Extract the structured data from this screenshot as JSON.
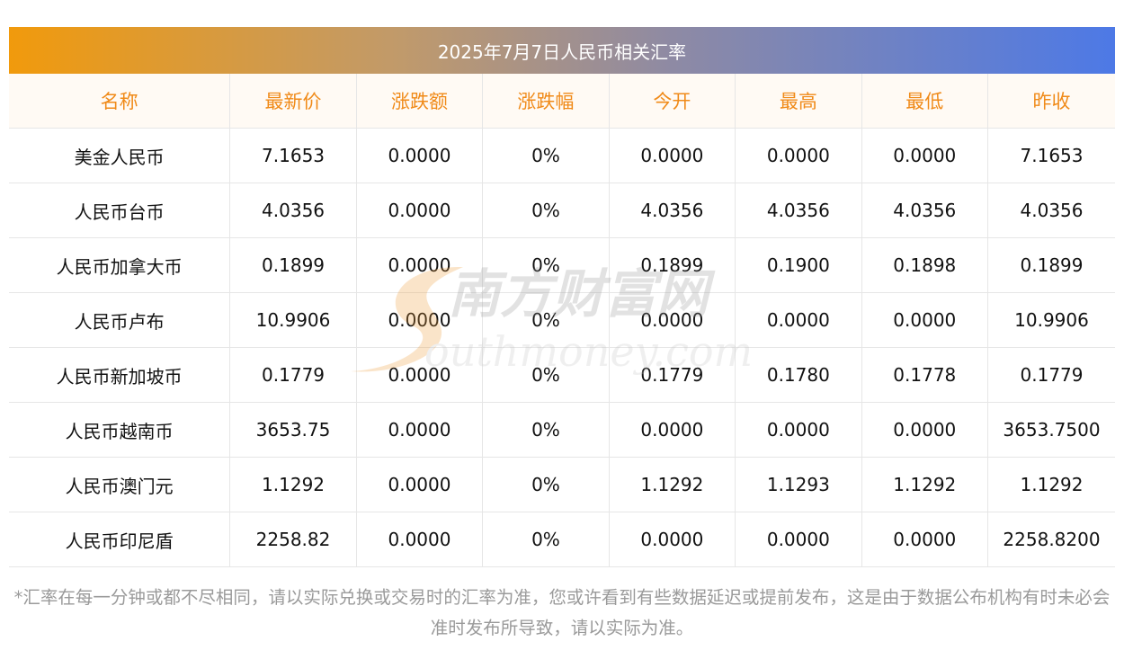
{
  "title": "2025年7月7日人民币相关汇率",
  "headers": [
    "名称",
    "最新价",
    "涨跌额",
    "涨跌幅",
    "今开",
    "最高",
    "最低",
    "昨收"
  ],
  "rows": [
    [
      "美金人民币",
      "7.1653",
      "0.0000",
      "0%",
      "0.0000",
      "0.0000",
      "0.0000",
      "7.1653"
    ],
    [
      "人民币台币",
      "4.0356",
      "0.0000",
      "0%",
      "4.0356",
      "4.0356",
      "4.0356",
      "4.0356"
    ],
    [
      "人民币加拿大币",
      "0.1899",
      "0.0000",
      "0%",
      "0.1899",
      "0.1900",
      "0.1898",
      "0.1899"
    ],
    [
      "人民币卢布",
      "10.9906",
      "0.0000",
      "0%",
      "0.0000",
      "0.0000",
      "0.0000",
      "10.9906"
    ],
    [
      "人民币新加坡币",
      "0.1779",
      "0.0000",
      "0%",
      "0.1779",
      "0.1780",
      "0.1778",
      "0.1779"
    ],
    [
      "人民币越南币",
      "3653.75",
      "0.0000",
      "0%",
      "0.0000",
      "0.0000",
      "0.0000",
      "3653.7500"
    ],
    [
      "人民币澳门元",
      "1.1292",
      "0.0000",
      "0%",
      "1.1292",
      "1.1293",
      "1.1292",
      "1.1292"
    ],
    [
      "人民币印尼盾",
      "2258.82",
      "0.0000",
      "0%",
      "0.0000",
      "0.0000",
      "0.0000",
      "2258.8200"
    ]
  ],
  "watermark": {
    "cn": "南方财富网",
    "en": "outhmoney.com"
  },
  "footnote": "*汇率在每一分钟或都不尽相同，请以实际兑换或交易时的汇率为准，您或许看到有些数据延迟或提前发布，这是由于数据公布机构有时未必会准时发布所导致，请以实际为准。",
  "colors": {
    "header_text": "#f08a18",
    "banner_start": "#f19a0c",
    "banner_end": "#4d79e6",
    "footnote_text": "#9a9a9a"
  }
}
